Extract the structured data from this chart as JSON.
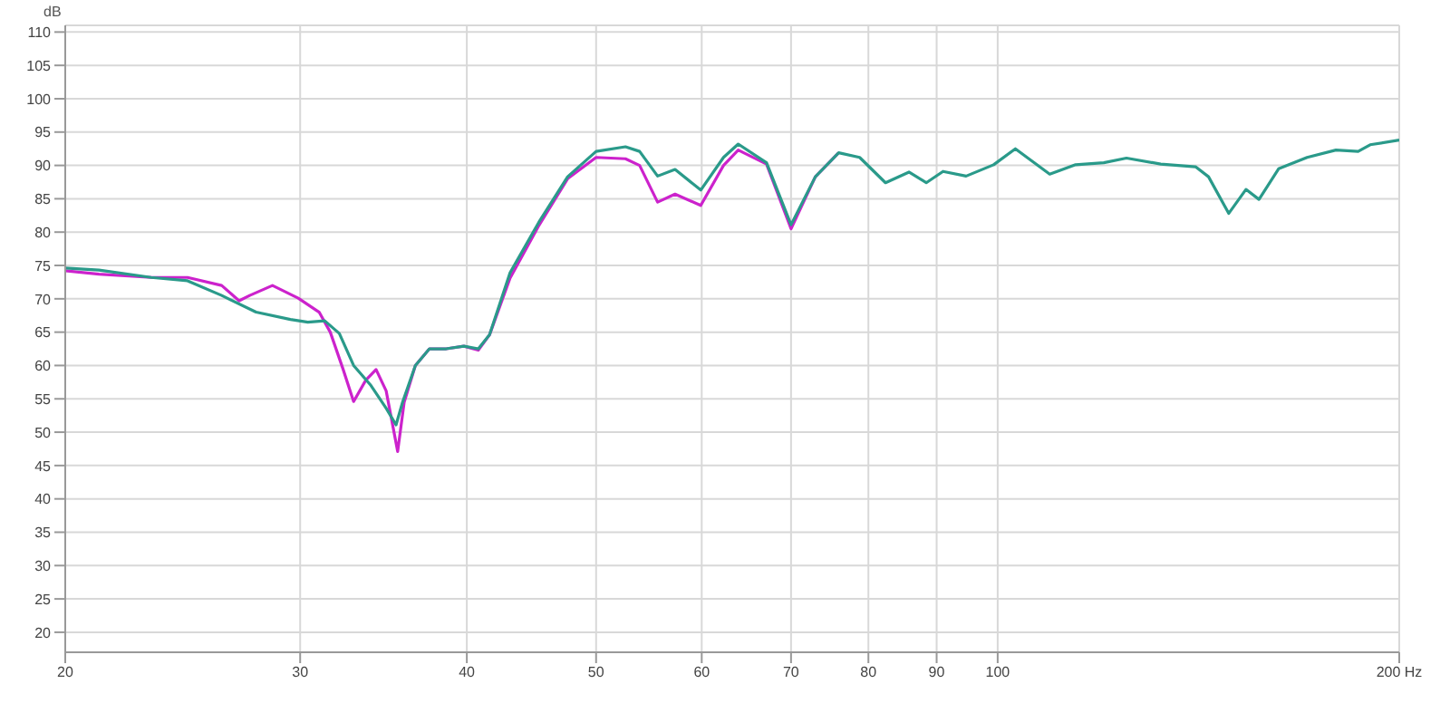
{
  "chart_data": {
    "type": "line",
    "ylabel": "dB",
    "log": "x",
    "grid": true,
    "line_style": "solid",
    "xlim": [
      20,
      200
    ],
    "ylim": [
      17,
      111
    ],
    "xticks": [
      20,
      30,
      40,
      50,
      60,
      70,
      80,
      90,
      100,
      {
        "value": 200,
        "label": "200 Hz"
      }
    ],
    "yticks": [
      20,
      25,
      30,
      35,
      40,
      45,
      50,
      55,
      60,
      65,
      70,
      75,
      80,
      85,
      90,
      95,
      100,
      105,
      110
    ],
    "series": [
      {
        "color": "#cc22cc",
        "x": [
          20,
          21.2,
          23.2,
          24.7,
          26.2,
          27.0,
          27.5,
          28.6,
          29.9,
          31.0,
          31.6,
          32.3,
          32.9,
          33.6,
          34.2,
          34.8,
          35.5,
          35.9,
          36.6,
          37.5,
          38.6,
          39.8,
          40.8,
          41.6,
          43.1,
          45.3,
          47.6,
          50.0,
          52.6,
          53.9,
          55.6,
          57.3,
          59.9,
          62.3,
          63.9,
          67.1,
          70.0,
          73.0,
          76.0
        ],
        "values": [
          74.2,
          73.7,
          73.2,
          73.2,
          72.0,
          69.7,
          70.5,
          72.0,
          70.1,
          68.0,
          65.0,
          59.5,
          54.6,
          57.8,
          59.4,
          56.2,
          47.1,
          54.5,
          60.0,
          62.5,
          62.5,
          62.9,
          62.3,
          64.6,
          73.1,
          81.0,
          88.0,
          91.2,
          91.0,
          90.0,
          84.5,
          85.7,
          84.0,
          90.0,
          92.3,
          90.2,
          80.5,
          88.3,
          91.9
        ]
      },
      {
        "color": "#2a9a8a",
        "x": [
          20,
          21.2,
          23.2,
          24.7,
          26.2,
          27.8,
          29.5,
          30.4,
          31.3,
          32.1,
          32.9,
          33.9,
          34.8,
          35.4,
          35.8,
          36.6,
          37.5,
          38.6,
          39.8,
          40.8,
          41.6,
          43.1,
          45.3,
          47.6,
          50.0,
          52.6,
          53.9,
          55.6,
          57.3,
          59.9,
          62.3,
          63.9,
          67.1,
          70.0,
          73.0,
          76.0,
          78.8,
          82.4,
          85.8,
          88.4,
          91.0,
          94.7,
          99.3,
          103.1,
          109.4,
          114.4,
          120.1,
          124.9,
          132.5,
          140.7,
          143.9,
          149.0,
          153.5,
          157.0,
          162.4,
          170.6,
          179.3,
          186.3,
          190.2,
          200
        ],
        "values": [
          74.6,
          74.3,
          73.2,
          72.7,
          70.5,
          68.0,
          66.9,
          66.5,
          66.7,
          64.8,
          60.0,
          57.0,
          53.6,
          51.1,
          54.5,
          60.0,
          62.5,
          62.5,
          62.9,
          62.5,
          64.6,
          73.9,
          81.5,
          88.3,
          92.1,
          92.8,
          92.1,
          88.4,
          89.4,
          86.3,
          91.2,
          93.2,
          90.4,
          81.1,
          88.3,
          91.9,
          91.2,
          87.4,
          89.0,
          87.4,
          89.1,
          88.4,
          90.1,
          92.5,
          88.7,
          90.1,
          90.4,
          91.1,
          90.2,
          89.8,
          88.3,
          82.8,
          86.4,
          84.9,
          89.5,
          91.2,
          92.3,
          92.1,
          93.1,
          93.8
        ]
      }
    ]
  }
}
